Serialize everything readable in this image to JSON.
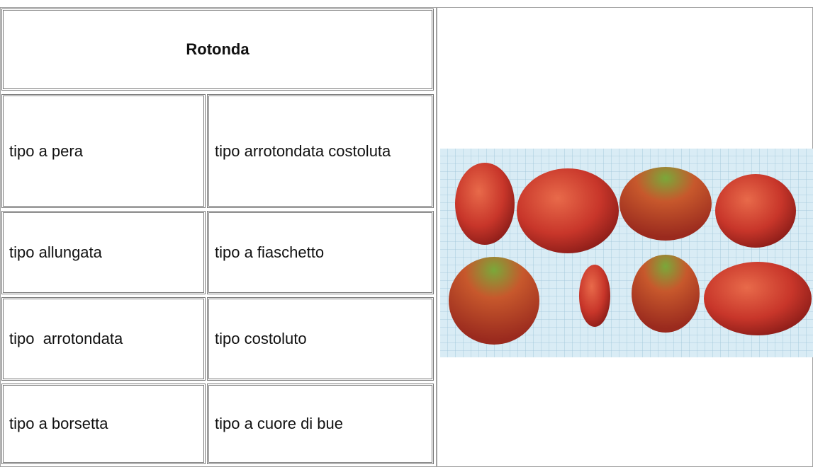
{
  "table": {
    "header": "Rotonda",
    "rows": [
      [
        "tipo a pera",
        "tipo arrotondata costoluta"
      ],
      [
        "tipo allungata",
        "tipo a fiaschetto"
      ],
      [
        "tipo  arrotondata",
        "tipo costoluto"
      ],
      [
        "tipo a borsetta",
        "tipo a cuore di bue"
      ]
    ]
  }
}
